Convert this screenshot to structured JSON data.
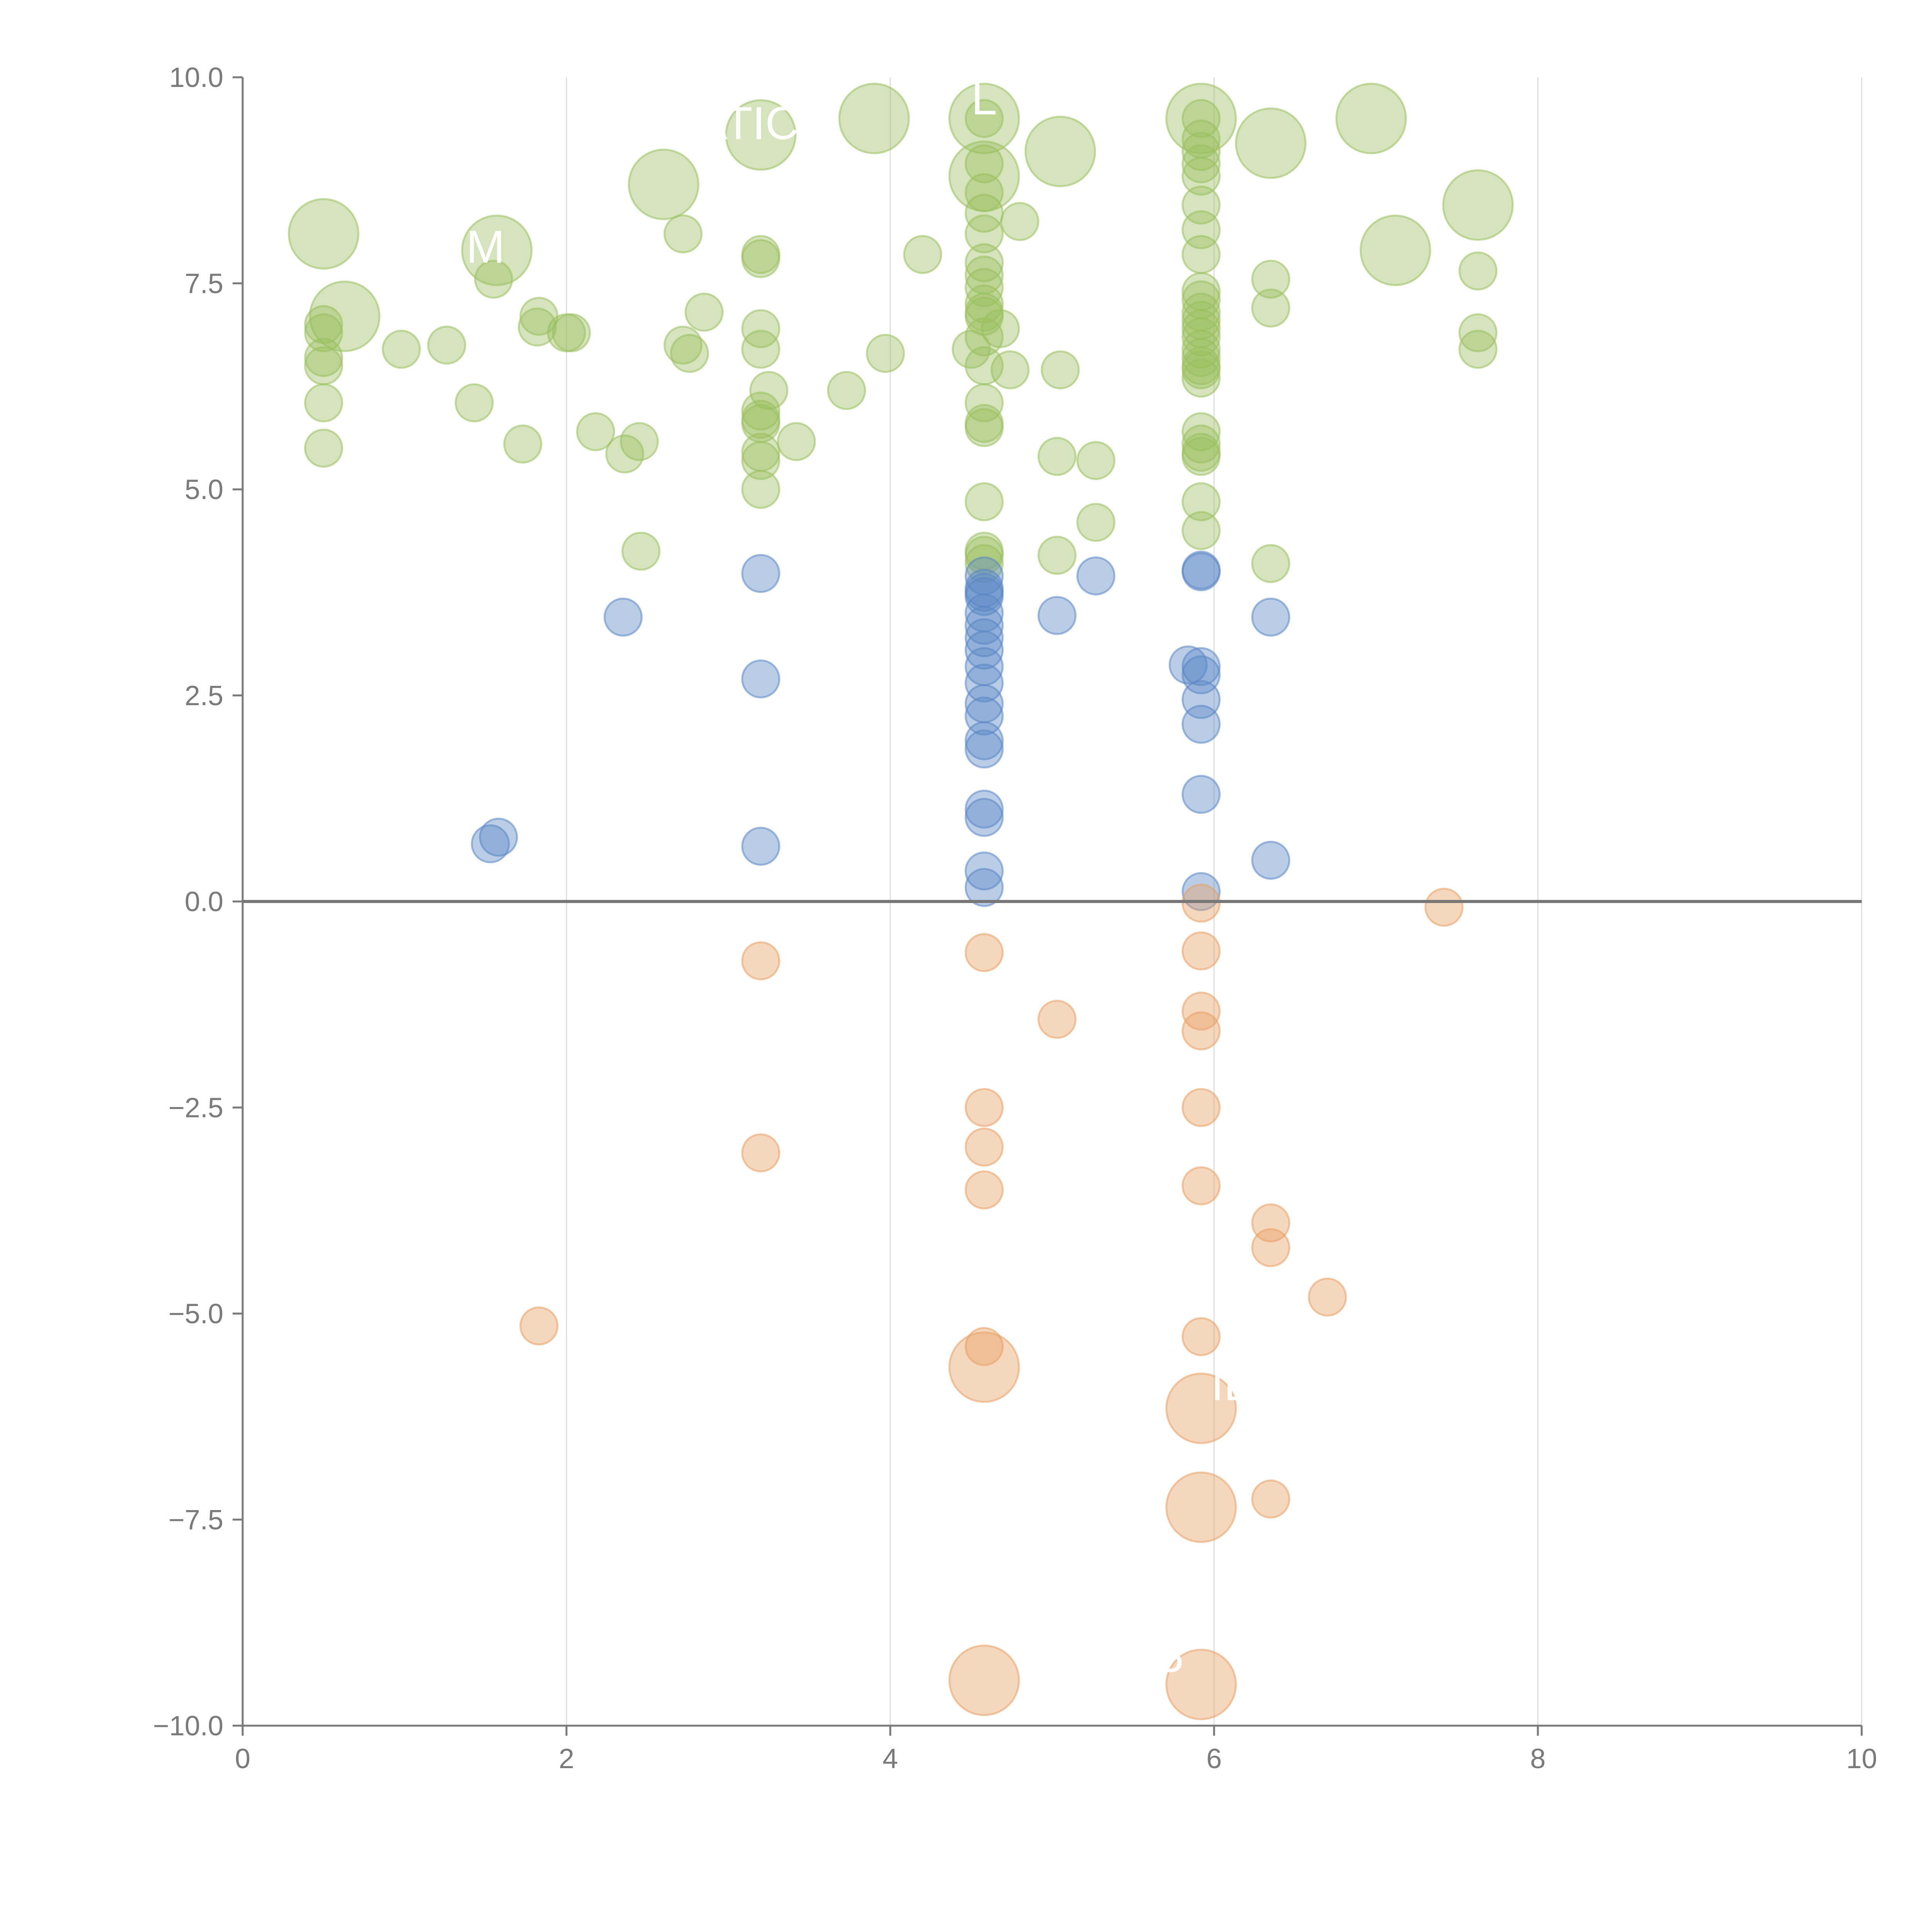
{
  "chart_data": {
    "type": "scatter",
    "title": "",
    "xlabel": "",
    "ylabel": "",
    "xlim": [
      0,
      10
    ],
    "ylim": [
      -10,
      10
    ],
    "x_ticks": [
      0,
      2,
      4,
      6,
      8,
      10
    ],
    "x_tick_labels": [
      "0",
      "2",
      "4",
      "6",
      "8",
      "10"
    ],
    "y_ticks": [
      10,
      7.5,
      5,
      2.5,
      0,
      -2.5,
      -5,
      -7.5,
      -10
    ],
    "y_tick_labels": [
      "10.0",
      "7.5",
      "5.0",
      "2.5",
      "0.0",
      "−2.5",
      "−5.0",
      "−7.5",
      "−10.0"
    ],
    "grid": "vertical",
    "zero_line": true,
    "colors": {
      "high": "#9bbf5f",
      "mid": "#5b87c5",
      "low": "#e8a064",
      "grid": "#dddddd",
      "axis": "#7a7a7a",
      "zero_line": "#777777"
    },
    "series": [
      {
        "name": "high",
        "color": "#9bbf5f",
        "points": [
          [
            0.5,
            7.0,
            1
          ],
          [
            0.5,
            6.9,
            1
          ],
          [
            0.5,
            6.6,
            1
          ],
          [
            0.5,
            6.5,
            1
          ],
          [
            0.5,
            6.05,
            1
          ],
          [
            0.5,
            5.5,
            1
          ],
          [
            0.5,
            8.1,
            2.2
          ],
          [
            0.63,
            7.1,
            2.2
          ],
          [
            0.98,
            6.7,
            1
          ],
          [
            1.26,
            6.75,
            1
          ],
          [
            1.43,
            6.05,
            1
          ],
          [
            1.55,
            7.55,
            1
          ],
          [
            1.57,
            7.9,
            2.2
          ],
          [
            1.73,
            5.55,
            1
          ],
          [
            1.82,
            6.97,
            1
          ],
          [
            1.83,
            7.1,
            1
          ],
          [
            2.0,
            6.9,
            1
          ],
          [
            2.03,
            6.9,
            1
          ],
          [
            2.18,
            5.7,
            1
          ],
          [
            2.36,
            5.43,
            1
          ],
          [
            2.45,
            5.58,
            1
          ],
          [
            2.46,
            4.25,
            1
          ],
          [
            2.6,
            8.7,
            2.2
          ],
          [
            2.72,
            6.75,
            1
          ],
          [
            2.72,
            8.1,
            1
          ],
          [
            2.76,
            6.65,
            1
          ],
          [
            2.85,
            7.15,
            1
          ],
          [
            3.2,
            7.85,
            1
          ],
          [
            3.2,
            7.8,
            1
          ],
          [
            3.2,
            6.95,
            1
          ],
          [
            3.2,
            6.7,
            1
          ],
          [
            3.2,
            5.95,
            1
          ],
          [
            3.2,
            5.85,
            1
          ],
          [
            3.2,
            5.8,
            1
          ],
          [
            3.2,
            5.45,
            1
          ],
          [
            3.2,
            5.35,
            1
          ],
          [
            3.2,
            5.0,
            1
          ],
          [
            3.2,
            9.3,
            2.2
          ],
          [
            3.25,
            6.2,
            1
          ],
          [
            3.42,
            5.58,
            1
          ],
          [
            3.73,
            6.2,
            1
          ],
          [
            3.9,
            9.5,
            2.2
          ],
          [
            3.97,
            6.65,
            1
          ],
          [
            4.2,
            7.85,
            1
          ],
          [
            4.5,
            6.7,
            1
          ],
          [
            4.58,
            9.5,
            1
          ],
          [
            4.58,
            8.95,
            1
          ],
          [
            4.58,
            8.6,
            1
          ],
          [
            4.58,
            8.35,
            1
          ],
          [
            4.58,
            8.1,
            1
          ],
          [
            4.58,
            7.75,
            1
          ],
          [
            4.58,
            7.6,
            1
          ],
          [
            4.58,
            7.45,
            1
          ],
          [
            4.58,
            7.25,
            1
          ],
          [
            4.58,
            7.15,
            1
          ],
          [
            4.58,
            7.1,
            1
          ],
          [
            4.58,
            6.85,
            1
          ],
          [
            4.58,
            6.5,
            1
          ],
          [
            4.58,
            6.05,
            1
          ],
          [
            4.58,
            5.8,
            1
          ],
          [
            4.58,
            5.75,
            1
          ],
          [
            4.58,
            4.85,
            1
          ],
          [
            4.58,
            4.25,
            1
          ],
          [
            4.58,
            4.2,
            1
          ],
          [
            4.58,
            4.1,
            1
          ],
          [
            4.58,
            9.5,
            2.2
          ],
          [
            4.58,
            8.8,
            2.2
          ],
          [
            4.68,
            6.95,
            1
          ],
          [
            4.74,
            6.45,
            1
          ],
          [
            4.8,
            8.25,
            1
          ],
          [
            5.03,
            5.4,
            1
          ],
          [
            5.03,
            4.2,
            1
          ],
          [
            5.05,
            9.1,
            2.2
          ],
          [
            5.05,
            6.45,
            1
          ],
          [
            5.27,
            5.35,
            1
          ],
          [
            5.27,
            4.6,
            1
          ],
          [
            5.92,
            9.5,
            2.2
          ],
          [
            5.92,
            9.5,
            1
          ],
          [
            5.92,
            9.25,
            1
          ],
          [
            5.92,
            9.1,
            1
          ],
          [
            5.92,
            8.95,
            1
          ],
          [
            5.92,
            8.8,
            1
          ],
          [
            5.92,
            8.45,
            1
          ],
          [
            5.92,
            8.15,
            1
          ],
          [
            5.92,
            7.85,
            1
          ],
          [
            5.92,
            7.4,
            1
          ],
          [
            5.92,
            7.3,
            1
          ],
          [
            5.92,
            7.15,
            1
          ],
          [
            5.92,
            7.05,
            1
          ],
          [
            5.92,
            6.95,
            1
          ],
          [
            5.92,
            6.85,
            1
          ],
          [
            5.92,
            6.7,
            1
          ],
          [
            5.92,
            6.6,
            1
          ],
          [
            5.92,
            6.5,
            1
          ],
          [
            5.92,
            6.45,
            1
          ],
          [
            5.92,
            6.35,
            1
          ],
          [
            5.92,
            5.7,
            1
          ],
          [
            5.92,
            5.55,
            1
          ],
          [
            5.92,
            5.45,
            1
          ],
          [
            5.92,
            5.4,
            1
          ],
          [
            5.92,
            4.85,
            1
          ],
          [
            5.92,
            4.5,
            1
          ],
          [
            6.35,
            9.2,
            2.2
          ],
          [
            6.35,
            7.55,
            1
          ],
          [
            6.35,
            7.2,
            1
          ],
          [
            6.35,
            4.1,
            1
          ],
          [
            6.97,
            9.5,
            2.2
          ],
          [
            7.12,
            7.9,
            2.2
          ],
          [
            7.63,
            8.45,
            2.2
          ],
          [
            7.63,
            7.65,
            1
          ],
          [
            7.63,
            6.9,
            1
          ],
          [
            7.63,
            6.7,
            1
          ]
        ]
      },
      {
        "name": "mid",
        "color": "#5b87c5",
        "points": [
          [
            1.53,
            0.7,
            1
          ],
          [
            1.58,
            0.78,
            1
          ],
          [
            2.35,
            3.45,
            1
          ],
          [
            3.2,
            3.98,
            1
          ],
          [
            3.2,
            2.7,
            1
          ],
          [
            3.2,
            0.67,
            1
          ],
          [
            4.58,
            3.95,
            1
          ],
          [
            4.58,
            3.8,
            1
          ],
          [
            4.58,
            3.75,
            1
          ],
          [
            4.58,
            3.7,
            1
          ],
          [
            4.58,
            3.5,
            1
          ],
          [
            4.58,
            3.35,
            1
          ],
          [
            4.58,
            3.2,
            1
          ],
          [
            4.58,
            3.05,
            1
          ],
          [
            4.58,
            2.85,
            1
          ],
          [
            4.58,
            2.65,
            1
          ],
          [
            4.58,
            2.4,
            1
          ],
          [
            4.58,
            2.25,
            1
          ],
          [
            4.58,
            1.95,
            1
          ],
          [
            4.58,
            1.85,
            1
          ],
          [
            4.58,
            1.12,
            1
          ],
          [
            4.58,
            1.02,
            1
          ],
          [
            4.58,
            0.37,
            1
          ],
          [
            4.58,
            0.17,
            1
          ],
          [
            5.03,
            3.47,
            1
          ],
          [
            5.27,
            3.95,
            1
          ],
          [
            5.84,
            2.87,
            1
          ],
          [
            5.92,
            4.02,
            1
          ],
          [
            5.92,
            4.0,
            1
          ],
          [
            5.92,
            2.85,
            1
          ],
          [
            5.92,
            2.75,
            1
          ],
          [
            5.92,
            2.45,
            1
          ],
          [
            5.92,
            2.15,
            1
          ],
          [
            5.92,
            1.3,
            1
          ],
          [
            5.92,
            0.12,
            1
          ],
          [
            6.35,
            3.45,
            1
          ],
          [
            6.35,
            0.5,
            1
          ]
        ]
      },
      {
        "name": "low",
        "color": "#e8a064",
        "points": [
          [
            1.83,
            -5.15,
            1
          ],
          [
            3.2,
            -0.72,
            1
          ],
          [
            3.2,
            -3.05,
            1
          ],
          [
            4.58,
            -0.62,
            1
          ],
          [
            4.58,
            -2.5,
            1
          ],
          [
            4.58,
            -2.98,
            1
          ],
          [
            4.58,
            -3.5,
            1
          ],
          [
            4.58,
            -5.4,
            1
          ],
          [
            4.58,
            -5.65,
            2.2
          ],
          [
            4.58,
            -9.45,
            2.2
          ],
          [
            5.03,
            -1.43,
            1
          ],
          [
            5.92,
            -0.02,
            1
          ],
          [
            5.92,
            -0.6,
            1
          ],
          [
            5.92,
            -1.33,
            1
          ],
          [
            5.92,
            -1.57,
            1
          ],
          [
            5.92,
            -2.5,
            1
          ],
          [
            5.92,
            -3.45,
            1
          ],
          [
            5.92,
            -5.28,
            1
          ],
          [
            5.92,
            -6.15,
            2.2
          ],
          [
            5.92,
            -7.35,
            2.2
          ],
          [
            5.92,
            -9.5,
            2.2
          ],
          [
            6.35,
            -3.9,
            1
          ],
          [
            6.35,
            -4.2,
            1
          ],
          [
            6.35,
            -7.25,
            1
          ],
          [
            6.7,
            -4.8,
            1
          ],
          [
            7.42,
            -0.07,
            1
          ]
        ]
      }
    ],
    "annotations": [
      {
        "text": "MATIC",
        "x": 3.0,
        "y": 9.25
      },
      {
        "text": "L",
        "x": 4.58,
        "y": 9.55
      },
      {
        "text": "M",
        "x": 1.5,
        "y": 7.75
      },
      {
        "text": "IL",
        "x": 6.1,
        "y": -6.05
      },
      {
        "text": "P",
        "x": 5.72,
        "y": -9.5
      }
    ]
  }
}
